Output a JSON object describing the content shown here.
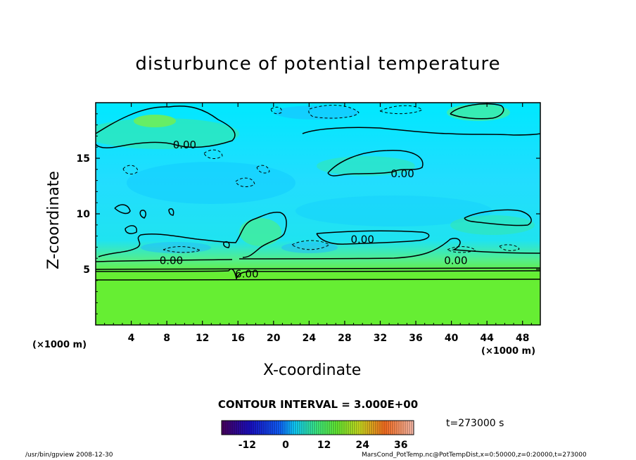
{
  "chart_data": {
    "type": "heatmap",
    "title": "disturbunce of potential temperature",
    "xlabel": "X-coordinate",
    "ylabel": "Z-coordinate",
    "x_unit": "(×1000 m)",
    "x_ticks": [
      4,
      8,
      12,
      16,
      20,
      24,
      28,
      32,
      36,
      40,
      44,
      48
    ],
    "y_ticks": [
      5,
      10,
      15
    ],
    "xlim": [
      0,
      50
    ],
    "ylim": [
      0,
      20
    ],
    "contour_interval": "CONTOUR INTERVAL = 3.000E+00",
    "contour_labels": [
      {
        "text": "0.00",
        "x": 10.0,
        "y": 16.2
      },
      {
        "text": "0.00",
        "x": 34.5,
        "y": 13.6
      },
      {
        "text": "0.00",
        "x": 30.0,
        "y": 7.7
      },
      {
        "text": "0.00",
        "x": 8.5,
        "y": 5.8
      },
      {
        "text": "0.00",
        "x": 40.5,
        "y": 5.8
      },
      {
        "text": "6.00",
        "x": 17.0,
        "y": 4.6
      }
    ],
    "colorbar": {
      "ticks": [
        -12,
        0,
        12,
        24,
        36
      ],
      "range": [
        -20,
        40
      ]
    },
    "time": "t=273000 s"
  },
  "footer": {
    "left": "/usr/bin/gpview   2008-12-30",
    "right": "MarsCond_PotTemp.nc@PotTempDist,x=0:50000,z=0:20000,t=273000"
  }
}
